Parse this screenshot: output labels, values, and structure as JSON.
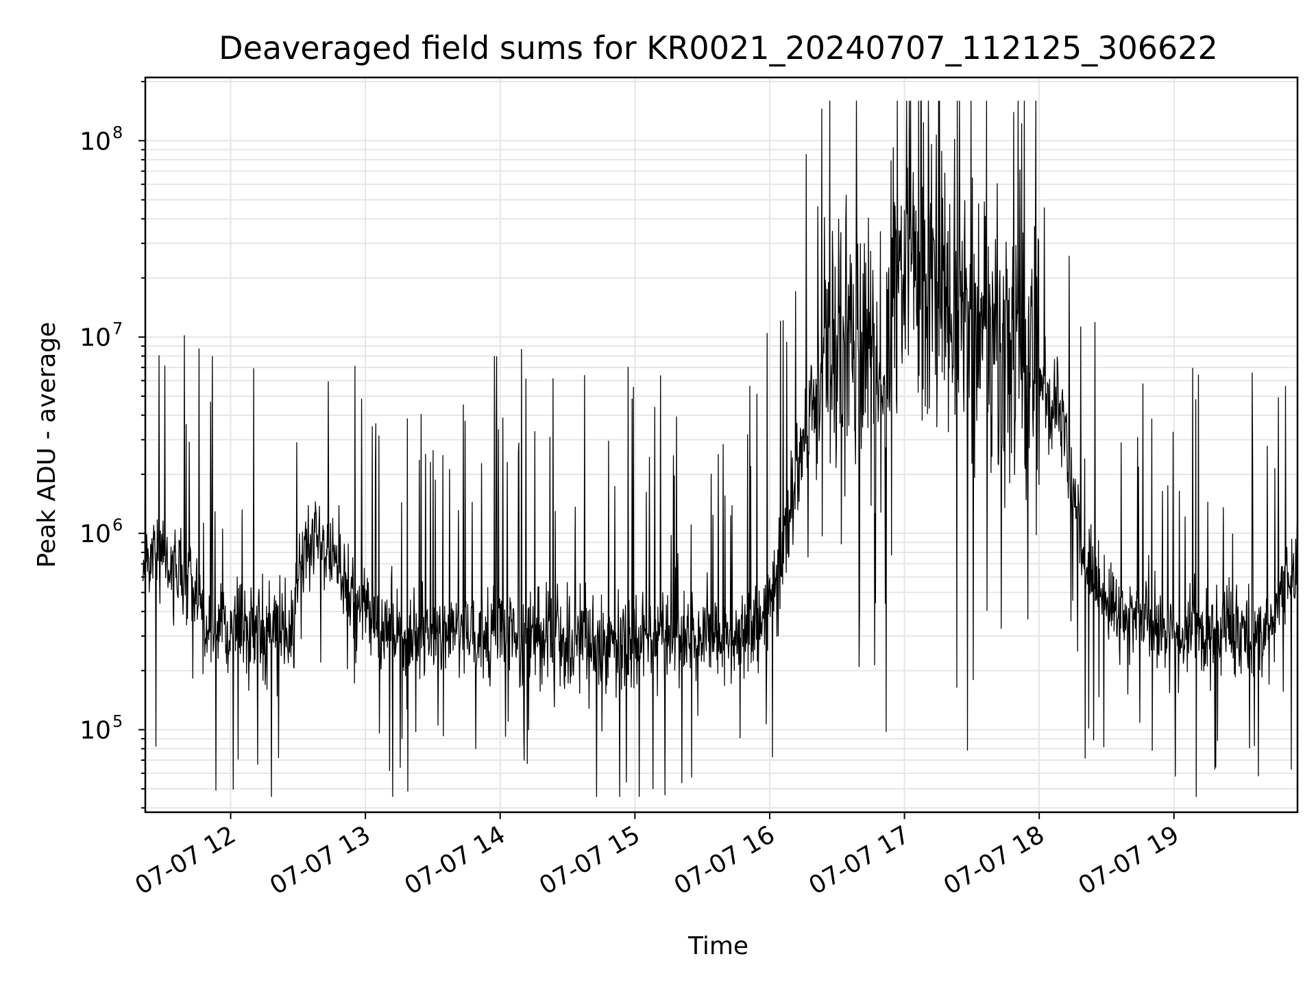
{
  "chart_data": {
    "type": "line",
    "title": "Deaveraged field sums for KR0021_20240707_112125_306622",
    "xlabel": "Time",
    "ylabel": "Peak ADU - average",
    "x_start": "07-07 11:21",
    "x_end": "07-07 19:55",
    "xlim": [
      "07-07 11:22",
      "07-07 19:55"
    ],
    "yscale": "log",
    "ylim": [
      38000,
      210000000
    ],
    "x_ticks": [
      "07-07 12",
      "07-07 13",
      "07-07 14",
      "07-07 15",
      "07-07 16",
      "07-07 17",
      "07-07 18",
      "07-07 19"
    ],
    "y_ticks": [
      {
        "base": "10",
        "exp": "5",
        "value": 100000
      },
      {
        "base": "10",
        "exp": "6",
        "value": 1000000
      },
      {
        "base": "10",
        "exp": "7",
        "value": 10000000
      },
      {
        "base": "10",
        "exp": "8",
        "value": 100000000
      }
    ],
    "grid": true,
    "line_color": "#000000",
    "series": [
      {
        "x": [
          "07-07 11:21",
          "07-07 11:30",
          "07-07 11:35",
          "07-07 11:45",
          "07-07 11:50",
          "07-07 12:00",
          "07-07 12:15",
          "07-07 12:25",
          "07-07 12:33",
          "07-07 12:38",
          "07-07 12:45",
          "07-07 12:55",
          "07-07 13:05",
          "07-07 13:20",
          "07-07 13:40",
          "07-07 14:00",
          "07-07 14:20",
          "07-07 14:40",
          "07-07 15:00",
          "07-07 15:20",
          "07-07 15:40",
          "07-07 15:55",
          "07-07 16:05",
          "07-07 16:15",
          "07-07 16:25",
          "07-07 16:40",
          "07-07 16:50",
          "07-07 17:00",
          "07-07 17:20",
          "07-07 17:40",
          "07-07 17:55",
          "07-07 18:10",
          "07-07 18:20",
          "07-07 18:35",
          "07-07 19:00",
          "07-07 19:20",
          "07-07 19:40",
          "07-07 19:55"
        ],
        "y": [
          700000,
          800000,
          600000,
          550000,
          300000,
          330000,
          300000,
          320000,
          700000,
          1100000,
          700000,
          500000,
          350000,
          300000,
          310000,
          330000,
          300000,
          260000,
          280000,
          300000,
          290000,
          350000,
          700000,
          3000000,
          10000000,
          15000000,
          5000000,
          30000000,
          15000000,
          10000000,
          8000000,
          4000000,
          700000,
          400000,
          330000,
          320000,
          300000,
          800000
        ]
      }
    ]
  }
}
